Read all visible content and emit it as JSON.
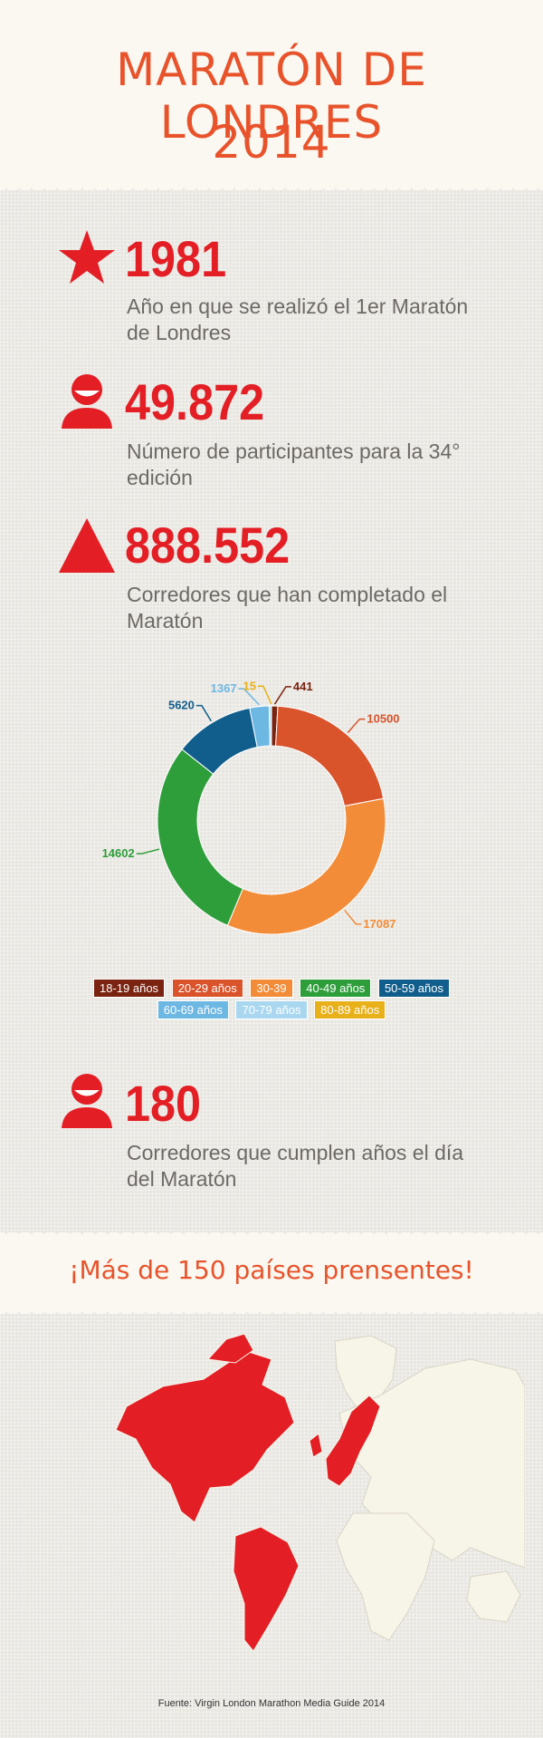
{
  "header": {
    "title_line1": "MARATÓN DE LONDRES",
    "title_line2": "2014"
  },
  "stats": [
    {
      "icon": "star-icon",
      "value": "1981",
      "desc": "Año en que se realizó el 1er Maratón de Londres"
    },
    {
      "icon": "runner-head-icon",
      "value": "49.872",
      "desc": "Número de participantes para la 34° edición"
    },
    {
      "icon": "triangle-icon",
      "value": "888.552",
      "desc": "Corredores que han completado el Maratón"
    }
  ],
  "chart_data": {
    "type": "pie",
    "title": "",
    "donut": true,
    "categories": [
      "18-19 años",
      "20-29 años",
      "30-39",
      "40-49 años",
      "50-59 años",
      "60-69 años",
      "70-79 años",
      "80-89 años"
    ],
    "values": [
      441,
      10500,
      17087,
      14602,
      5620,
      1367,
      150,
      15
    ],
    "colors": [
      "#7a2310",
      "#d9532b",
      "#f28c38",
      "#2e9e3b",
      "#115e8c",
      "#6db7e3",
      "#a9d7f0",
      "#e8b019"
    ],
    "labels": [
      "441",
      "10500",
      "17087",
      "14602",
      "5620",
      "1367",
      "",
      "15"
    ],
    "legend_position": "bottom"
  },
  "stat4": {
    "icon": "runner-head-icon",
    "value": "180",
    "desc": "Corredores que cumplen años el día del Maratón"
  },
  "countries": {
    "text": "¡Más de 150 países prensentes!"
  },
  "map": {
    "highlight_color": "#e31e24",
    "base_color": "#f7f4e8"
  },
  "source": "Fuente: Virgin London Marathon Media Guide 2014"
}
